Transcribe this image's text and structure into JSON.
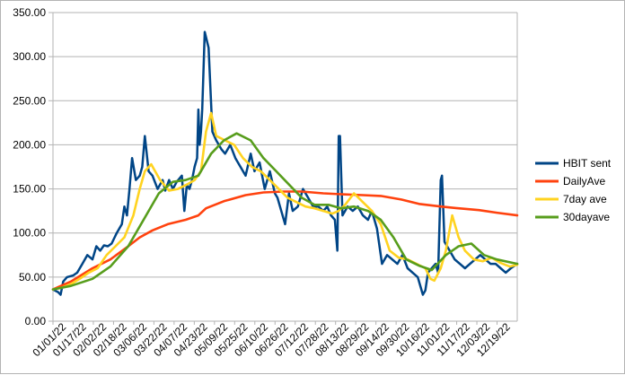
{
  "chart_data": {
    "type": "line",
    "title": "",
    "xlabel": "",
    "ylabel": "",
    "ylim": [
      0,
      350
    ],
    "y_ticks": [
      "0.00",
      "50.00",
      "100.00",
      "150.00",
      "200.00",
      "250.00",
      "300.00",
      "350.00"
    ],
    "x_tick_labels": [
      "01/01/22",
      "01/17/22",
      "02/02/22",
      "02/18/22",
      "03/06/22",
      "03/22/22",
      "04/07/22",
      "04/23/22",
      "05/09/22",
      "05/25/22",
      "06/10/22",
      "06/26/22",
      "07/12/22",
      "07/28/22",
      "08/13/22",
      "08/29/22",
      "09/14/22",
      "09/30/22",
      "10/16/22",
      "11/01/22",
      "11/17/22",
      "12/03/22",
      "12/19/22"
    ],
    "x_range": [
      "2022-01-01",
      "2022-12-31"
    ],
    "grid": "horizontal",
    "legend_position": "right",
    "series": [
      {
        "name": "HBIT sent",
        "color": "#004586",
        "x": [
          "2022-01-01",
          "2022-01-05",
          "2022-01-07",
          "2022-01-09",
          "2022-01-12",
          "2022-01-17",
          "2022-01-20",
          "2022-01-24",
          "2022-01-28",
          "2022-02-01",
          "2022-02-04",
          "2022-02-07",
          "2022-02-10",
          "2022-02-13",
          "2022-02-16",
          "2022-02-20",
          "2022-02-24",
          "2022-02-26",
          "2022-02-28",
          "2022-03-02",
          "2022-03-04",
          "2022-03-07",
          "2022-03-10",
          "2022-03-12",
          "2022-03-14",
          "2022-03-17",
          "2022-03-20",
          "2022-03-24",
          "2022-03-28",
          "2022-03-30",
          "2022-04-02",
          "2022-04-05",
          "2022-04-08",
          "2022-04-12",
          "2022-04-14",
          "2022-04-16",
          "2022-04-18",
          "2022-04-20",
          "2022-04-22",
          "2022-04-24",
          "2022-04-25",
          "2022-04-26",
          "2022-04-27",
          "2022-04-28",
          "2022-04-30",
          "2022-05-03",
          "2022-05-06",
          "2022-05-09",
          "2022-05-13",
          "2022-05-16",
          "2022-05-20",
          "2022-05-24",
          "2022-05-28",
          "2022-06-01",
          "2022-06-05",
          "2022-06-08",
          "2022-06-12",
          "2022-06-16",
          "2022-06-20",
          "2022-06-24",
          "2022-06-26",
          "2022-06-28",
          "2022-07-02",
          "2022-07-05",
          "2022-07-08",
          "2022-07-12",
          "2022-07-16",
          "2022-07-20",
          "2022-07-24",
          "2022-07-28",
          "2022-08-01",
          "2022-08-04",
          "2022-08-07",
          "2022-08-10",
          "2022-08-12",
          "2022-08-13",
          "2022-08-14",
          "2022-08-16",
          "2022-08-20",
          "2022-08-24",
          "2022-08-28",
          "2022-09-01",
          "2022-09-05",
          "2022-09-08",
          "2022-09-12",
          "2022-09-16",
          "2022-09-20",
          "2022-09-24",
          "2022-09-28",
          "2022-10-02",
          "2022-10-06",
          "2022-10-10",
          "2022-10-14",
          "2022-10-18",
          "2022-10-20",
          "2022-10-22",
          "2022-10-25",
          "2022-10-28",
          "2022-10-30",
          "2022-11-01",
          "2022-11-02",
          "2022-11-04",
          "2022-11-08",
          "2022-11-12",
          "2022-11-16",
          "2022-11-20",
          "2022-11-24",
          "2022-11-28",
          "2022-12-02",
          "2022-12-06",
          "2022-12-10",
          "2022-12-14",
          "2022-12-18",
          "2022-12-22",
          "2022-12-26",
          "2022-12-31"
        ],
        "y": [
          36,
          33,
          30,
          45,
          50,
          52,
          55,
          65,
          75,
          70,
          85,
          80,
          86,
          85,
          88,
          100,
          110,
          130,
          120,
          150,
          185,
          160,
          165,
          175,
          210,
          170,
          165,
          150,
          160,
          148,
          160,
          150,
          158,
          165,
          125,
          155,
          150,
          160,
          175,
          185,
          240,
          200,
          215,
          240,
          328,
          310,
          215,
          205,
          195,
          190,
          200,
          185,
          175,
          165,
          190,
          170,
          180,
          150,
          170,
          145,
          140,
          130,
          110,
          145,
          125,
          130,
          150,
          140,
          130,
          130,
          125,
          130,
          120,
          115,
          80,
          210,
          210,
          120,
          130,
          125,
          130,
          120,
          115,
          125,
          105,
          65,
          75,
          70,
          65,
          75,
          60,
          55,
          50,
          30,
          35,
          55,
          60,
          65,
          55,
          160,
          165,
          90,
          80,
          70,
          65,
          60,
          65,
          70,
          75,
          70,
          65,
          65,
          60,
          55,
          60,
          65
        ]
      },
      {
        "name": "DailyAve",
        "color": "#ff420e",
        "x": [
          "2022-01-01",
          "2022-01-15",
          "2022-02-01",
          "2022-02-15",
          "2022-03-01",
          "2022-03-10",
          "2022-03-20",
          "2022-04-01",
          "2022-04-15",
          "2022-04-25",
          "2022-05-01",
          "2022-05-15",
          "2022-06-01",
          "2022-06-15",
          "2022-07-01",
          "2022-07-15",
          "2022-08-01",
          "2022-08-15",
          "2022-09-01",
          "2022-09-15",
          "2022-10-01",
          "2022-10-15",
          "2022-11-01",
          "2022-11-15",
          "2022-12-01",
          "2022-12-15",
          "2022-12-31"
        ],
        "y": [
          36,
          45,
          60,
          70,
          85,
          95,
          103,
          110,
          115,
          120,
          128,
          136,
          143,
          146,
          147,
          147,
          145,
          144,
          143,
          142,
          138,
          133,
          130,
          128,
          126,
          123,
          120
        ]
      },
      {
        "name": "7day ave",
        "color": "#ffd320",
        "x": [
          "2022-01-01",
          "2022-01-08",
          "2022-01-15",
          "2022-01-22",
          "2022-01-29",
          "2022-02-05",
          "2022-02-12",
          "2022-02-19",
          "2022-02-26",
          "2022-03-05",
          "2022-03-10",
          "2022-03-14",
          "2022-03-19",
          "2022-03-26",
          "2022-04-02",
          "2022-04-09",
          "2022-04-16",
          "2022-04-22",
          "2022-04-27",
          "2022-05-01",
          "2022-05-05",
          "2022-05-09",
          "2022-05-16",
          "2022-05-23",
          "2022-05-30",
          "2022-06-06",
          "2022-06-13",
          "2022-06-20",
          "2022-06-27",
          "2022-07-04",
          "2022-07-11",
          "2022-07-18",
          "2022-07-25",
          "2022-08-01",
          "2022-08-08",
          "2022-08-13",
          "2022-08-18",
          "2022-08-25",
          "2022-09-01",
          "2022-09-08",
          "2022-09-15",
          "2022-09-22",
          "2022-09-29",
          "2022-10-06",
          "2022-10-13",
          "2022-10-20",
          "2022-10-24",
          "2022-10-27",
          "2022-11-01",
          "2022-11-05",
          "2022-11-10",
          "2022-11-15",
          "2022-11-20",
          "2022-11-27",
          "2022-12-04",
          "2022-12-11",
          "2022-12-18",
          "2022-12-25",
          "2022-12-31"
        ],
        "y": [
          36,
          38,
          42,
          48,
          55,
          60,
          75,
          85,
          95,
          120,
          150,
          170,
          178,
          160,
          148,
          150,
          155,
          160,
          170,
          215,
          236,
          210,
          205,
          200,
          185,
          175,
          170,
          160,
          150,
          140,
          135,
          130,
          128,
          125,
          122,
          125,
          132,
          145,
          135,
          125,
          110,
          80,
          72,
          70,
          65,
          60,
          48,
          46,
          60,
          80,
          120,
          95,
          80,
          70,
          68,
          72,
          66,
          62,
          64
        ]
      },
      {
        "name": "30dayave",
        "color": "#579d1c",
        "x": [
          "2022-01-01",
          "2022-01-15",
          "2022-02-01",
          "2022-02-15",
          "2022-03-01",
          "2022-03-15",
          "2022-03-25",
          "2022-04-05",
          "2022-04-15",
          "2022-04-25",
          "2022-05-05",
          "2022-05-15",
          "2022-05-25",
          "2022-06-05",
          "2022-06-15",
          "2022-06-25",
          "2022-07-05",
          "2022-07-15",
          "2022-07-25",
          "2022-08-05",
          "2022-08-15",
          "2022-08-25",
          "2022-09-05",
          "2022-09-15",
          "2022-09-25",
          "2022-10-05",
          "2022-10-15",
          "2022-10-25",
          "2022-11-05",
          "2022-11-15",
          "2022-11-25",
          "2022-12-05",
          "2022-12-15",
          "2022-12-31"
        ],
        "y": [
          36,
          40,
          48,
          62,
          85,
          120,
          145,
          158,
          160,
          165,
          190,
          205,
          213,
          205,
          185,
          170,
          155,
          140,
          132,
          132,
          128,
          130,
          125,
          115,
          95,
          70,
          63,
          58,
          75,
          85,
          88,
          75,
          70,
          65
        ]
      }
    ]
  }
}
